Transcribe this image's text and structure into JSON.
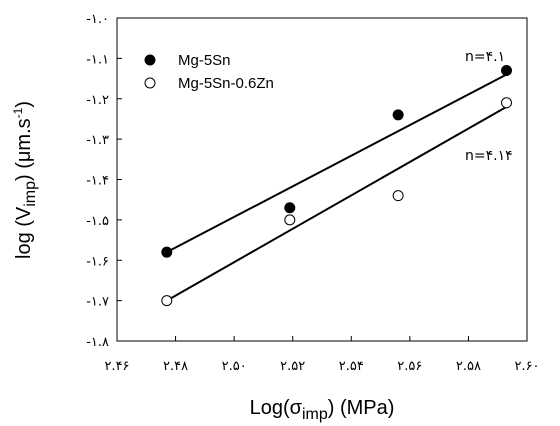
{
  "chart_data": {
    "type": "scatter",
    "x_label": {
      "prefix": "Log(",
      "sym": "σ",
      "sub": "imp",
      "suffix": ") (MPa)"
    },
    "y_label": {
      "prefix": "log (V",
      "sub": "imp",
      "mid": ") (μm.s",
      "sup": "-1",
      "suffix": ")"
    },
    "xlim": [
      2.46,
      2.6
    ],
    "ylim": [
      -1.8,
      -1.0
    ],
    "x_ticks": [
      2.46,
      2.48,
      2.5,
      2.52,
      2.54,
      2.56,
      2.58,
      2.6
    ],
    "x_tick_labels": [
      "۲.۴۶",
      "۲.۴۸",
      "۲.۵۰",
      "۲.۵۲",
      "۲.۵۴",
      "۲.۵۶",
      "۲.۵۸",
      "۲.۶۰"
    ],
    "y_ticks": [
      -1.0,
      -1.1,
      -1.2,
      -1.3,
      -1.4,
      -1.5,
      -1.6,
      -1.7,
      -1.8
    ],
    "y_tick_labels": [
      "-۱.۰",
      "-۱.۱",
      "-۱.۲",
      "-۱.۳",
      "-۱.۴",
      "-۱.۵",
      "-۱.۶",
      "-۱.۷",
      "-۱.۸"
    ],
    "grid": false,
    "legend_position": "top-left",
    "series": [
      {
        "name": "Mg-5Sn",
        "marker": "filled-circle",
        "color": "#000000",
        "x": [
          2.477,
          2.519,
          2.556,
          2.593
        ],
        "y": [
          -1.58,
          -1.47,
          -1.24,
          -1.13
        ],
        "fit": {
          "x": [
            2.477,
            2.593
          ],
          "y": [
            -1.58,
            -1.14
          ]
        },
        "annotation": "n=۴.۱"
      },
      {
        "name": "Mg-5Sn-0.6Zn",
        "marker": "open-circle",
        "color": "#000000",
        "x": [
          2.477,
          2.519,
          2.556,
          2.593
        ],
        "y": [
          -1.7,
          -1.5,
          -1.44,
          -1.21
        ],
        "fit": {
          "x": [
            2.477,
            2.593
          ],
          "y": [
            -1.7,
            -1.22
          ]
        },
        "annotation": "n=۴.۱۴"
      }
    ]
  }
}
